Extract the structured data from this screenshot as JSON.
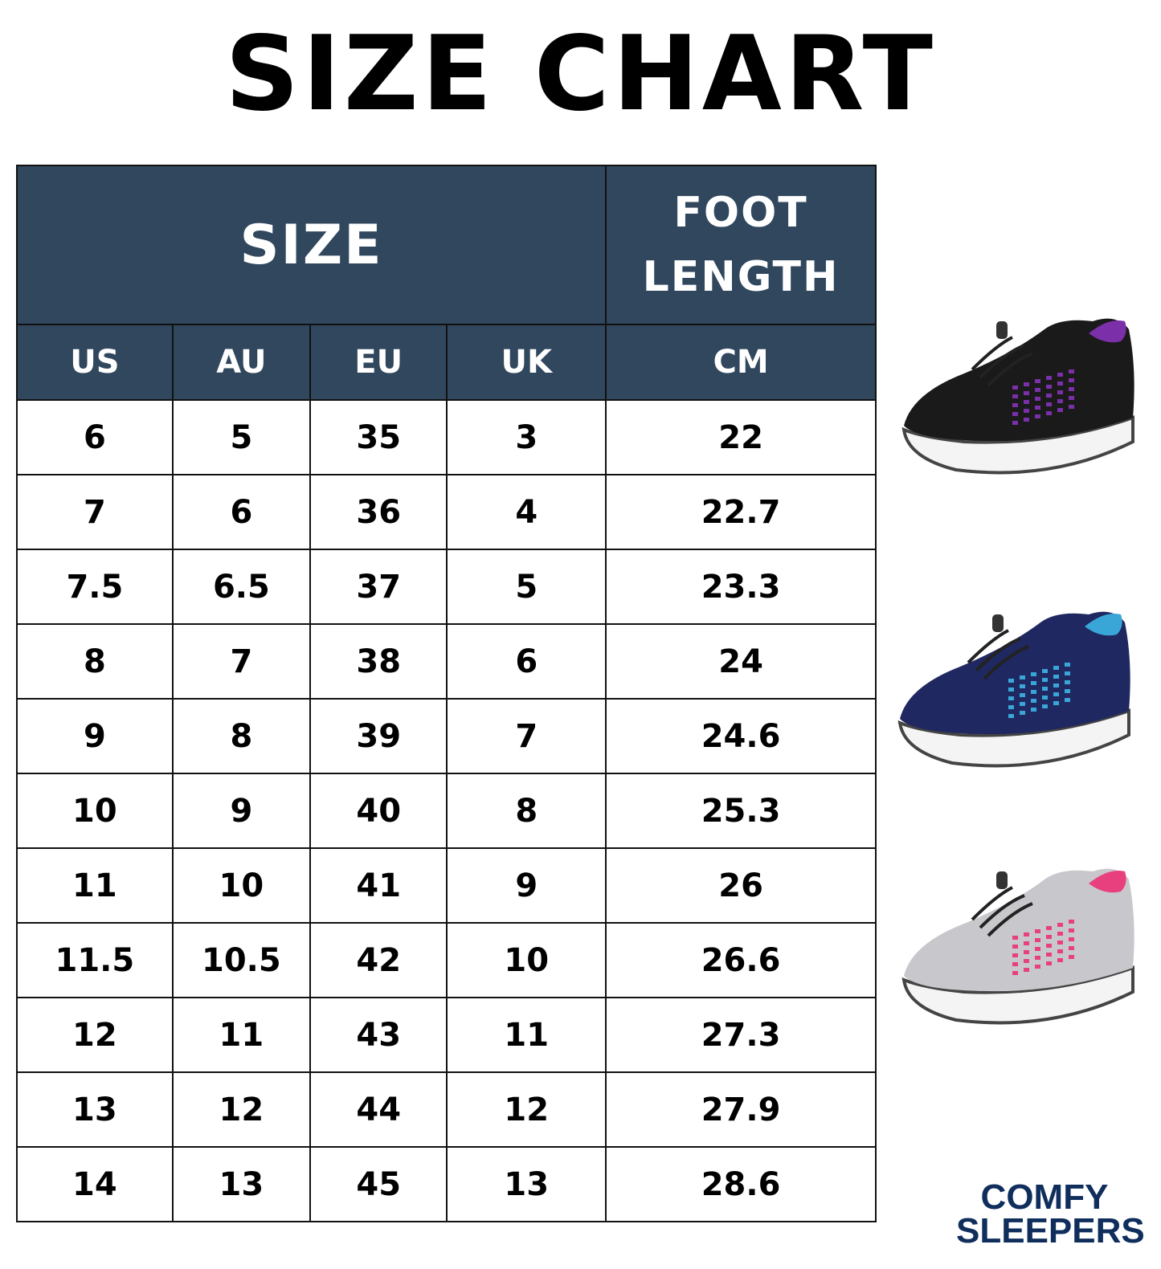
{
  "title": "SIZE CHART",
  "table": {
    "group_headers": {
      "size": "SIZE",
      "foot_length_line1": "FOOT",
      "foot_length_line2": "LENGTH"
    },
    "columns": [
      "US",
      "AU",
      "EU",
      "UK",
      "CM"
    ],
    "rows": [
      [
        "6",
        "5",
        "35",
        "3",
        "22"
      ],
      [
        "7",
        "6",
        "36",
        "4",
        "22.7"
      ],
      [
        "7.5",
        "6.5",
        "37",
        "5",
        "23.3"
      ],
      [
        "8",
        "7",
        "38",
        "6",
        "24"
      ],
      [
        "9",
        "8",
        "39",
        "7",
        "24.6"
      ],
      [
        "10",
        "9",
        "40",
        "8",
        "25.3"
      ],
      [
        "11",
        "10",
        "41",
        "9",
        "26"
      ],
      [
        "11.5",
        "10.5",
        "42",
        "10",
        "26.6"
      ],
      [
        "12",
        "11",
        "43",
        "11",
        "27.3"
      ],
      [
        "13",
        "12",
        "44",
        "12",
        "27.9"
      ],
      [
        "14",
        "13",
        "45",
        "13",
        "28.6"
      ]
    ]
  },
  "colors": {
    "header": "#30475e",
    "logo": "#0f2e5c"
  },
  "shoes": [
    {
      "name": "black-purple-shoe",
      "body": "#1a1a1a",
      "accent": "#7b2fa8"
    },
    {
      "name": "navy-blue-shoe",
      "body": "#1f2860",
      "accent": "#3aa6d8"
    },
    {
      "name": "grey-pink-shoe",
      "body": "#c8c8cc",
      "accent": "#e8407f"
    }
  ],
  "logo": {
    "line1": "COMFY",
    "line2": "SLEEPERS"
  }
}
